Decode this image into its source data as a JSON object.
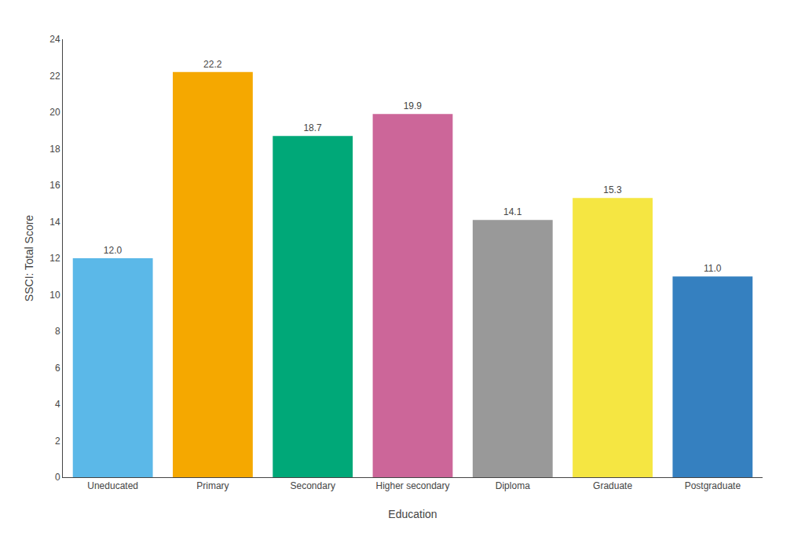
{
  "chart_data": {
    "type": "bar",
    "categories": [
      "Uneducated",
      "Primary",
      "Secondary",
      "Higher secondary",
      "Diploma",
      "Graduate",
      "Postgraduate"
    ],
    "values": [
      12.0,
      22.2,
      18.7,
      19.9,
      14.1,
      15.3,
      11.0
    ],
    "value_labels": [
      "12.0",
      "22.2",
      "18.7",
      "19.9",
      "14.1",
      "15.3",
      "11.0"
    ],
    "colors": [
      "#5BB8E8",
      "#F5A800",
      "#00A878",
      "#CC6699",
      "#999999",
      "#F5E642",
      "#3580C0"
    ],
    "xlabel": "Education",
    "ylabel": "SSCI: Total Score",
    "ylim": [
      0,
      24
    ],
    "yticks": [
      0,
      2,
      4,
      6,
      8,
      10,
      12,
      14,
      16,
      18,
      20,
      22,
      24
    ],
    "grid": false,
    "data_labels": true
  }
}
